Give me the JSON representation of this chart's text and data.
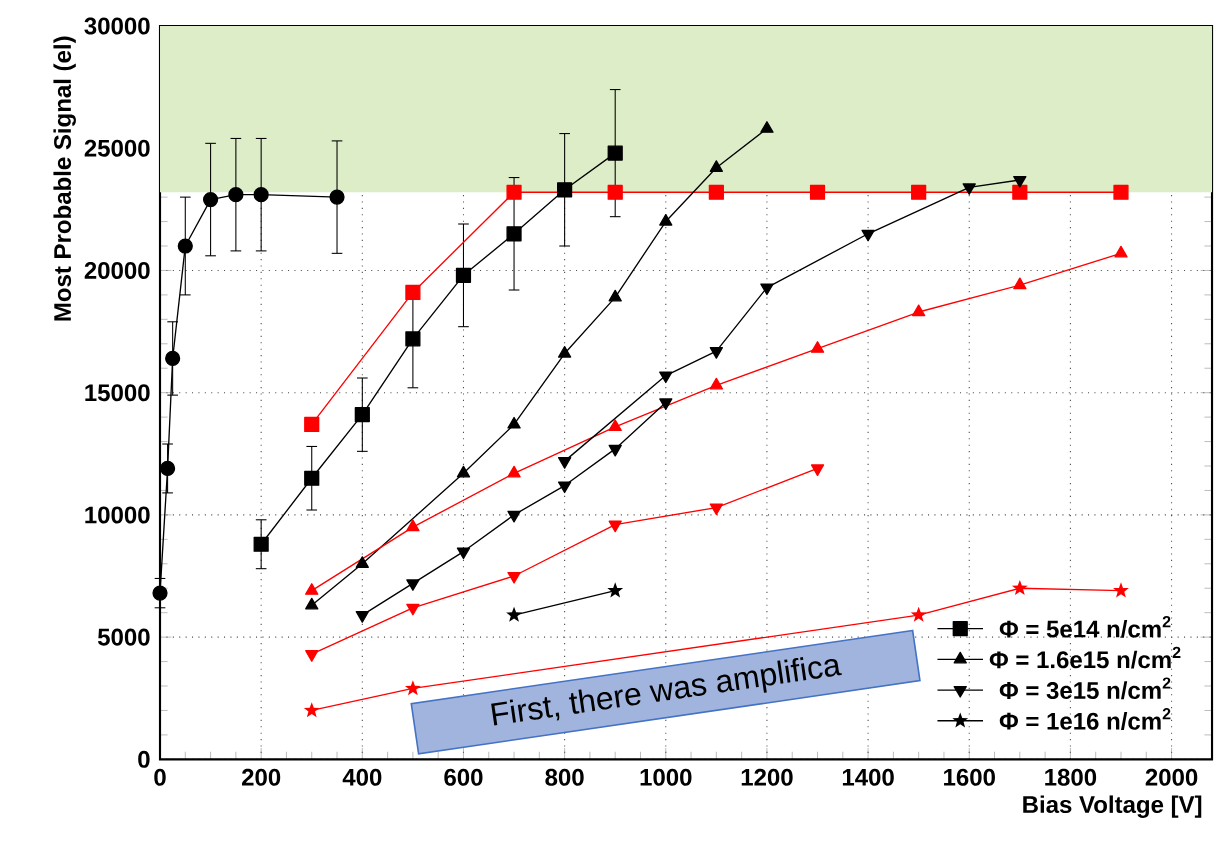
{
  "chart_data": {
    "type": "line",
    "xlabel": "Bias Voltage [V]",
    "ylabel": "Most Probable Signal (el)",
    "xlim": [
      0,
      2080
    ],
    "ylim": [
      0,
      30000
    ],
    "xticks": [
      0,
      200,
      400,
      600,
      800,
      1000,
      1200,
      1400,
      1600,
      1800,
      2000
    ],
    "yticks": [
      0,
      5000,
      10000,
      15000,
      20000,
      25000,
      30000
    ],
    "grid": true,
    "legend": "bottom right",
    "bands": [
      {
        "axis": "y",
        "from": 23200,
        "to": 30000,
        "color": "#dcedc8"
      }
    ],
    "annotations": [
      "First, there was amplifica"
    ],
    "series": [
      {
        "color": "#000000",
        "marker": "circle",
        "x": [
          0,
          15,
          25,
          50,
          100,
          150,
          200,
          350
        ],
        "values": [
          6800,
          11900,
          16400,
          21000,
          22900,
          23100,
          23100,
          23000
        ],
        "errors": [
          600,
          1000,
          1500,
          2000,
          2300,
          2300,
          2300,
          2300
        ]
      },
      {
        "name": "Φ = 5e14 n/cm$^{2}$",
        "color": "#000000",
        "marker": "square",
        "x": [
          200,
          300,
          400,
          500,
          600,
          700,
          800,
          900
        ],
        "values": [
          8800,
          11500,
          14100,
          17200,
          19800,
          21500,
          23300,
          24800
        ],
        "errors": [
          1000,
          1300,
          1500,
          2000,
          2100,
          2300,
          2300,
          2600
        ]
      },
      {
        "color": "#ff0000",
        "marker": "square",
        "x": [
          300,
          500,
          700,
          900,
          1100,
          1300,
          1500,
          1700,
          1900
        ],
        "values": [
          13700,
          19100,
          23200,
          23200,
          23200,
          23200,
          23200,
          23200,
          23200
        ]
      },
      {
        "name": "Φ = 1.6e15 n/cm$^{2}$",
        "color": "#000000",
        "marker": "triangle",
        "x": [
          300,
          400,
          500,
          600,
          700,
          800,
          900,
          1000,
          1100,
          1200
        ],
        "values": [
          6300,
          8000,
          null,
          11700,
          13700,
          16600,
          18900,
          22000,
          24200,
          25800
        ]
      },
      {
        "color": "#ff0000",
        "marker": "triangle",
        "x": [
          300,
          500,
          700,
          900,
          1100,
          1300,
          1500,
          1700,
          1900
        ],
        "values": [
          6900,
          9500,
          11700,
          13600,
          15300,
          16800,
          18300,
          19400,
          20700
        ]
      },
      {
        "name": "Φ = 3e15 n/cm$^{2}$",
        "color": "#000000",
        "marker": "triangle_down",
        "x": [
          400,
          500,
          600,
          700,
          800,
          900,
          1000
        ],
        "values": [
          5900,
          7200,
          8500,
          10000,
          11200,
          12700,
          14600
        ]
      },
      {
        "color": "#000000",
        "marker": "triangle_down",
        "x": [
          800,
          1000,
          1100,
          1200,
          1400,
          1600,
          1700
        ],
        "values": [
          12200,
          15700,
          16700,
          19300,
          21500,
          23400,
          23700
        ]
      },
      {
        "color": "#ff0000",
        "marker": "triangle_down",
        "x": [
          300,
          500,
          700,
          900,
          1100,
          1300
        ],
        "values": [
          4300,
          6200,
          7500,
          9600,
          10300,
          11900
        ]
      },
      {
        "name": "Φ = 1e16 n/cm$^{2}$",
        "color": "#000000",
        "marker": "star",
        "x": [
          700,
          900
        ],
        "values": [
          5900,
          6900
        ]
      },
      {
        "color": "#ff0000",
        "marker": "star",
        "x": [
          300,
          500,
          1500,
          1700,
          1900
        ],
        "values": [
          2000,
          2900,
          5900,
          7000,
          6900
        ]
      }
    ]
  }
}
